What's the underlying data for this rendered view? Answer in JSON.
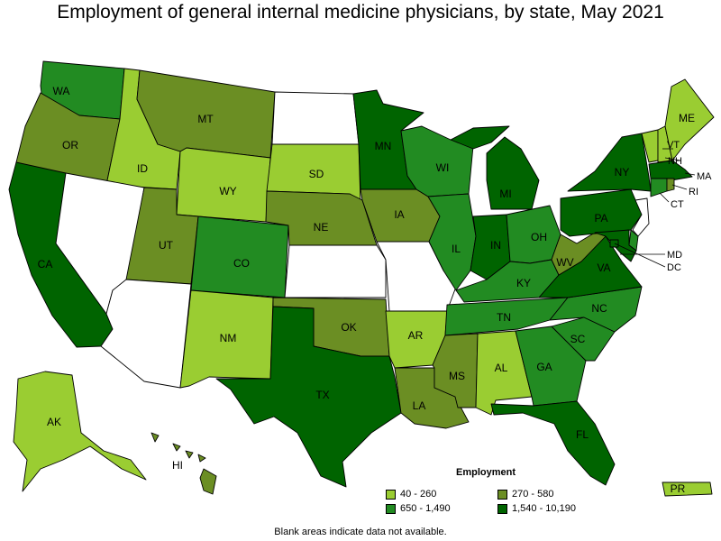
{
  "title": "Employment of general internal medicine physicians, by state, May 2021",
  "legend": {
    "title": "Employment",
    "items": [
      {
        "label": "40 - 260",
        "color": "#9acd32"
      },
      {
        "label": "270 - 580",
        "color": "#6b8e23"
      },
      {
        "label": "650 - 1,490",
        "color": "#228b22"
      },
      {
        "label": "1,540 - 10,190",
        "color": "#006400"
      }
    ]
  },
  "footnote": "Blank areas indicate data not available.",
  "states": {
    "WA": {
      "label": "WA",
      "cat": 2
    },
    "OR": {
      "label": "OR",
      "cat": 1
    },
    "CA": {
      "label": "CA",
      "cat": 3
    },
    "ID": {
      "label": "ID",
      "cat": 0
    },
    "NV": {
      "label": "",
      "cat": -1
    },
    "MT": {
      "label": "MT",
      "cat": 1
    },
    "WY": {
      "label": "WY",
      "cat": 0
    },
    "UT": {
      "label": "UT",
      "cat": 1
    },
    "AZ": {
      "label": "",
      "cat": -1
    },
    "CO": {
      "label": "CO",
      "cat": 2
    },
    "NM": {
      "label": "NM",
      "cat": 0
    },
    "ND": {
      "label": "",
      "cat": -1
    },
    "SD": {
      "label": "SD",
      "cat": 0
    },
    "NE": {
      "label": "NE",
      "cat": 1
    },
    "KS": {
      "label": "",
      "cat": -1
    },
    "OK": {
      "label": "OK",
      "cat": 1
    },
    "TX": {
      "label": "TX",
      "cat": 3
    },
    "MN": {
      "label": "MN",
      "cat": 3
    },
    "IA": {
      "label": "IA",
      "cat": 1
    },
    "MO": {
      "label": "",
      "cat": -1
    },
    "AR": {
      "label": "AR",
      "cat": 0
    },
    "LA": {
      "label": "LA",
      "cat": 1
    },
    "WI": {
      "label": "WI",
      "cat": 2
    },
    "IL": {
      "label": "IL",
      "cat": 2
    },
    "MI": {
      "label": "MI",
      "cat": 3
    },
    "IN": {
      "label": "IN",
      "cat": 3
    },
    "OH": {
      "label": "OH",
      "cat": 2
    },
    "KY": {
      "label": "KY",
      "cat": 2
    },
    "TN": {
      "label": "TN",
      "cat": 2
    },
    "MS": {
      "label": "MS",
      "cat": 1
    },
    "AL": {
      "label": "AL",
      "cat": 0
    },
    "GA": {
      "label": "GA",
      "cat": 2
    },
    "FL": {
      "label": "FL",
      "cat": 3
    },
    "SC": {
      "label": "SC",
      "cat": 2
    },
    "NC": {
      "label": "NC",
      "cat": 2
    },
    "VA": {
      "label": "VA",
      "cat": 3
    },
    "WV": {
      "label": "WV",
      "cat": 1
    },
    "PA": {
      "label": "PA",
      "cat": 3
    },
    "NY": {
      "label": "NY",
      "cat": 3
    },
    "VT": {
      "label": "VT",
      "cat": 0
    },
    "NH": {
      "label": "NH",
      "cat": 0
    },
    "ME": {
      "label": "ME",
      "cat": 0
    },
    "MA": {
      "label": "MA",
      "cat": 3
    },
    "CT": {
      "label": "CT",
      "cat": 2
    },
    "RI": {
      "label": "RI",
      "cat": 1
    },
    "NJ": {
      "label": "",
      "cat": -1
    },
    "DE": {
      "label": "",
      "cat": 2
    },
    "MD": {
      "label": "MD",
      "cat": 3
    },
    "DC": {
      "label": "DC",
      "cat": 3
    },
    "AK": {
      "label": "AK",
      "cat": 0
    },
    "HI": {
      "label": "HI",
      "cat": 1
    },
    "PR": {
      "label": "PR",
      "cat": 0
    }
  }
}
